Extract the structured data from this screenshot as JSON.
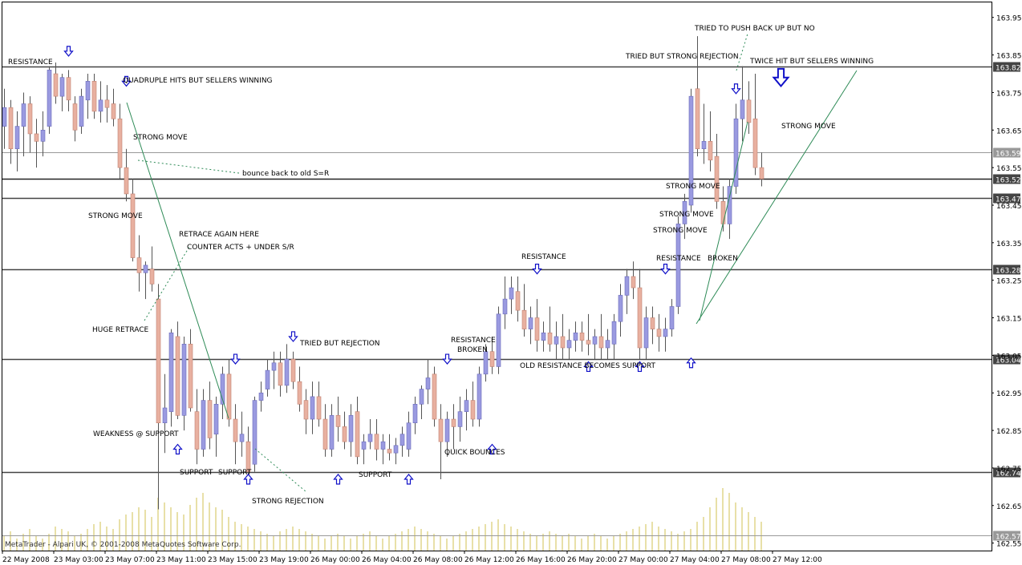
{
  "chart_data": {
    "type": "candlestick",
    "title": "",
    "xlabel": "",
    "ylabel": "",
    "ylim": [
      162.53,
      163.99
    ],
    "grid": false,
    "watermark": "MetaTrader - Alpari UK, © 2001-2008 MetaQuotes Software Corp.",
    "x_tick_labels": [
      "22 May 2008",
      "23 May 03:00",
      "23 May 07:00",
      "23 May 11:00",
      "23 May 15:00",
      "23 May 19:00",
      "26 May 00:00",
      "26 May 04:00",
      "26 May 08:00",
      "26 May 12:00",
      "26 May 16:00",
      "26 May 20:00",
      "27 May 00:00",
      "27 May 04:00",
      "27 May 08:00",
      "27 May 12:00"
    ],
    "y_tick_labels": [
      163.95,
      163.85,
      163.75,
      163.65,
      163.55,
      163.45,
      163.35,
      163.25,
      163.15,
      163.05,
      162.95,
      162.85,
      162.75,
      162.65,
      162.55
    ],
    "horizontal_levels": [
      {
        "value": 163.82,
        "label": "163.82",
        "color": "#444444"
      },
      {
        "value": 163.59,
        "label": "163.59",
        "color": "#999999"
      },
      {
        "value": 163.52,
        "label": "163.52",
        "color": "#222222"
      },
      {
        "value": 163.47,
        "label": "163.47",
        "color": "#444444"
      },
      {
        "value": 163.28,
        "label": "163.28",
        "color": "#444444"
      },
      {
        "value": 163.04,
        "label": "163.04",
        "color": "#444444"
      },
      {
        "value": 162.74,
        "label": "162.74",
        "color": "#444444"
      },
      {
        "value": 162.57,
        "label": "162.57",
        "color": "#999999"
      }
    ],
    "colors": {
      "bull": "#9a9ae0",
      "bear": "#e8b0a0",
      "bull_edge": "#6a6ab8",
      "bear_edge": "#c08070",
      "wick": "#555555",
      "volume": "#e8e0a8",
      "arrow": "#1010c8",
      "trendline": "#2e8b57"
    },
    "candles": [
      {
        "o": 163.66,
        "h": 163.76,
        "l": 163.6,
        "c": 163.71
      },
      {
        "o": 163.71,
        "h": 163.73,
        "l": 163.56,
        "c": 163.6
      },
      {
        "o": 163.6,
        "h": 163.7,
        "l": 163.54,
        "c": 163.66
      },
      {
        "o": 163.66,
        "h": 163.75,
        "l": 163.58,
        "c": 163.72
      },
      {
        "o": 163.72,
        "h": 163.74,
        "l": 163.59,
        "c": 163.64
      },
      {
        "o": 163.64,
        "h": 163.68,
        "l": 163.55,
        "c": 163.62
      },
      {
        "o": 163.62,
        "h": 163.7,
        "l": 163.58,
        "c": 163.65
      },
      {
        "o": 163.66,
        "h": 163.82,
        "l": 163.64,
        "c": 163.81
      },
      {
        "o": 163.8,
        "h": 163.83,
        "l": 163.72,
        "c": 163.74
      },
      {
        "o": 163.74,
        "h": 163.8,
        "l": 163.7,
        "c": 163.79
      },
      {
        "o": 163.79,
        "h": 163.81,
        "l": 163.7,
        "c": 163.73
      },
      {
        "o": 163.72,
        "h": 163.74,
        "l": 163.62,
        "c": 163.65
      },
      {
        "o": 163.66,
        "h": 163.76,
        "l": 163.64,
        "c": 163.74
      },
      {
        "o": 163.73,
        "h": 163.8,
        "l": 163.68,
        "c": 163.78
      },
      {
        "o": 163.78,
        "h": 163.8,
        "l": 163.68,
        "c": 163.7
      },
      {
        "o": 163.7,
        "h": 163.78,
        "l": 163.67,
        "c": 163.73
      },
      {
        "o": 163.73,
        "h": 163.77,
        "l": 163.67,
        "c": 163.71
      },
      {
        "o": 163.72,
        "h": 163.76,
        "l": 163.66,
        "c": 163.68
      },
      {
        "o": 163.68,
        "h": 163.72,
        "l": 163.52,
        "c": 163.55
      },
      {
        "o": 163.55,
        "h": 163.6,
        "l": 163.46,
        "c": 163.48
      },
      {
        "o": 163.48,
        "h": 163.52,
        "l": 163.3,
        "c": 163.31
      },
      {
        "o": 163.31,
        "h": 163.37,
        "l": 163.22,
        "c": 163.27
      },
      {
        "o": 163.27,
        "h": 163.3,
        "l": 163.2,
        "c": 163.29
      },
      {
        "o": 163.28,
        "h": 163.34,
        "l": 163.22,
        "c": 163.24
      },
      {
        "o": 163.2,
        "h": 163.24,
        "l": 162.64,
        "c": 162.87
      },
      {
        "o": 162.87,
        "h": 163.0,
        "l": 162.79,
        "c": 162.91
      },
      {
        "o": 162.9,
        "h": 163.12,
        "l": 162.86,
        "c": 163.11
      },
      {
        "o": 163.1,
        "h": 163.14,
        "l": 162.88,
        "c": 162.89
      },
      {
        "o": 162.89,
        "h": 163.1,
        "l": 162.85,
        "c": 163.08
      },
      {
        "o": 163.08,
        "h": 163.12,
        "l": 162.9,
        "c": 162.91
      },
      {
        "o": 162.9,
        "h": 162.96,
        "l": 162.76,
        "c": 162.8
      },
      {
        "o": 162.8,
        "h": 162.96,
        "l": 162.78,
        "c": 162.93
      },
      {
        "o": 162.93,
        "h": 162.98,
        "l": 162.8,
        "c": 162.83
      },
      {
        "o": 162.84,
        "h": 162.94,
        "l": 162.78,
        "c": 162.92
      },
      {
        "o": 162.92,
        "h": 163.02,
        "l": 162.88,
        "c": 163.0
      },
      {
        "o": 163.0,
        "h": 163.04,
        "l": 162.86,
        "c": 162.88
      },
      {
        "o": 162.88,
        "h": 162.92,
        "l": 162.76,
        "c": 162.82
      },
      {
        "o": 162.82,
        "h": 162.9,
        "l": 162.78,
        "c": 162.84
      },
      {
        "o": 162.82,
        "h": 162.86,
        "l": 162.72,
        "c": 162.74
      },
      {
        "o": 162.76,
        "h": 162.94,
        "l": 162.74,
        "c": 162.93
      },
      {
        "o": 162.93,
        "h": 162.98,
        "l": 162.9,
        "c": 162.95
      },
      {
        "o": 162.96,
        "h": 163.04,
        "l": 162.94,
        "c": 163.01
      },
      {
        "o": 163.01,
        "h": 163.06,
        "l": 162.96,
        "c": 163.03
      },
      {
        "o": 163.03,
        "h": 163.06,
        "l": 162.94,
        "c": 162.97
      },
      {
        "o": 162.97,
        "h": 163.08,
        "l": 162.95,
        "c": 163.04
      },
      {
        "o": 163.04,
        "h": 163.06,
        "l": 162.96,
        "c": 162.98
      },
      {
        "o": 162.98,
        "h": 163.02,
        "l": 162.9,
        "c": 162.92
      },
      {
        "o": 162.93,
        "h": 162.96,
        "l": 162.84,
        "c": 162.88
      },
      {
        "o": 162.88,
        "h": 162.98,
        "l": 162.84,
        "c": 162.94
      },
      {
        "o": 162.94,
        "h": 162.98,
        "l": 162.86,
        "c": 162.88
      },
      {
        "o": 162.88,
        "h": 162.92,
        "l": 162.78,
        "c": 162.8
      },
      {
        "o": 162.8,
        "h": 162.92,
        "l": 162.78,
        "c": 162.89
      },
      {
        "o": 162.89,
        "h": 162.94,
        "l": 162.82,
        "c": 162.86
      },
      {
        "o": 162.86,
        "h": 162.9,
        "l": 162.8,
        "c": 162.82
      },
      {
        "o": 162.82,
        "h": 162.92,
        "l": 162.78,
        "c": 162.89
      },
      {
        "o": 162.9,
        "h": 162.94,
        "l": 162.76,
        "c": 162.78
      },
      {
        "o": 162.8,
        "h": 162.84,
        "l": 162.76,
        "c": 162.82
      },
      {
        "o": 162.82,
        "h": 162.88,
        "l": 162.8,
        "c": 162.84
      },
      {
        "o": 162.84,
        "h": 162.88,
        "l": 162.77,
        "c": 162.8
      },
      {
        "o": 162.8,
        "h": 162.84,
        "l": 162.76,
        "c": 162.82
      },
      {
        "o": 162.8,
        "h": 162.84,
        "l": 162.77,
        "c": 162.79
      },
      {
        "o": 162.79,
        "h": 162.83,
        "l": 162.76,
        "c": 162.81
      },
      {
        "o": 162.81,
        "h": 162.86,
        "l": 162.78,
        "c": 162.84
      },
      {
        "o": 162.8,
        "h": 162.9,
        "l": 162.78,
        "c": 162.87
      },
      {
        "o": 162.87,
        "h": 162.94,
        "l": 162.84,
        "c": 162.92
      },
      {
        "o": 162.92,
        "h": 162.97,
        "l": 162.88,
        "c": 162.96
      },
      {
        "o": 162.96,
        "h": 163.04,
        "l": 162.92,
        "c": 162.99
      },
      {
        "o": 163.0,
        "h": 163.02,
        "l": 162.86,
        "c": 162.88
      },
      {
        "o": 162.88,
        "h": 162.92,
        "l": 162.72,
        "c": 162.82
      },
      {
        "o": 162.82,
        "h": 162.9,
        "l": 162.78,
        "c": 162.88
      },
      {
        "o": 162.88,
        "h": 162.92,
        "l": 162.8,
        "c": 162.86
      },
      {
        "o": 162.86,
        "h": 162.94,
        "l": 162.82,
        "c": 162.9
      },
      {
        "o": 162.9,
        "h": 162.96,
        "l": 162.85,
        "c": 162.93
      },
      {
        "o": 162.93,
        "h": 162.98,
        "l": 162.86,
        "c": 162.88
      },
      {
        "o": 162.88,
        "h": 163.02,
        "l": 162.86,
        "c": 163.0
      },
      {
        "o": 163.0,
        "h": 163.08,
        "l": 162.98,
        "c": 163.06
      },
      {
        "o": 163.06,
        "h": 163.1,
        "l": 163.0,
        "c": 163.02
      },
      {
        "o": 163.02,
        "h": 163.18,
        "l": 163.0,
        "c": 163.16
      },
      {
        "o": 163.16,
        "h": 163.26,
        "l": 163.12,
        "c": 163.2
      },
      {
        "o": 163.2,
        "h": 163.26,
        "l": 163.16,
        "c": 163.23
      },
      {
        "o": 163.22,
        "h": 163.26,
        "l": 163.14,
        "c": 163.17
      },
      {
        "o": 163.17,
        "h": 163.24,
        "l": 163.1,
        "c": 163.12
      },
      {
        "o": 163.12,
        "h": 163.18,
        "l": 163.08,
        "c": 163.15
      },
      {
        "o": 163.15,
        "h": 163.2,
        "l": 163.06,
        "c": 163.09
      },
      {
        "o": 163.09,
        "h": 163.14,
        "l": 163.06,
        "c": 163.11
      },
      {
        "o": 163.11,
        "h": 163.18,
        "l": 163.06,
        "c": 163.08
      },
      {
        "o": 163.08,
        "h": 163.14,
        "l": 163.04,
        "c": 163.1
      },
      {
        "o": 163.1,
        "h": 163.16,
        "l": 163.04,
        "c": 163.07
      },
      {
        "o": 163.07,
        "h": 163.12,
        "l": 163.04,
        "c": 163.09
      },
      {
        "o": 163.09,
        "h": 163.14,
        "l": 163.06,
        "c": 163.11
      },
      {
        "o": 163.11,
        "h": 163.14,
        "l": 163.06,
        "c": 163.09
      },
      {
        "o": 163.09,
        "h": 163.16,
        "l": 163.05,
        "c": 163.08
      },
      {
        "o": 163.08,
        "h": 163.12,
        "l": 163.04,
        "c": 163.1
      },
      {
        "o": 163.1,
        "h": 163.16,
        "l": 163.04,
        "c": 163.07
      },
      {
        "o": 163.07,
        "h": 163.12,
        "l": 163.04,
        "c": 163.09
      },
      {
        "o": 163.08,
        "h": 163.16,
        "l": 163.04,
        "c": 163.14
      },
      {
        "o": 163.14,
        "h": 163.24,
        "l": 163.1,
        "c": 163.21
      },
      {
        "o": 163.21,
        "h": 163.28,
        "l": 163.16,
        "c": 163.26
      },
      {
        "o": 163.26,
        "h": 163.3,
        "l": 163.2,
        "c": 163.23
      },
      {
        "o": 163.23,
        "h": 163.28,
        "l": 163.04,
        "c": 163.07
      },
      {
        "o": 163.07,
        "h": 163.18,
        "l": 163.04,
        "c": 163.15
      },
      {
        "o": 163.15,
        "h": 163.18,
        "l": 163.08,
        "c": 163.12
      },
      {
        "o": 163.12,
        "h": 163.16,
        "l": 163.06,
        "c": 163.1
      },
      {
        "o": 163.1,
        "h": 163.15,
        "l": 163.06,
        "c": 163.12
      },
      {
        "o": 163.12,
        "h": 163.2,
        "l": 163.1,
        "c": 163.18
      },
      {
        "o": 163.18,
        "h": 163.42,
        "l": 163.16,
        "c": 163.4
      },
      {
        "o": 163.4,
        "h": 163.48,
        "l": 163.36,
        "c": 163.46
      },
      {
        "o": 163.45,
        "h": 163.76,
        "l": 163.43,
        "c": 163.74
      },
      {
        "o": 163.76,
        "h": 163.9,
        "l": 163.58,
        "c": 163.6
      },
      {
        "o": 163.6,
        "h": 163.72,
        "l": 163.56,
        "c": 163.62
      },
      {
        "o": 163.62,
        "h": 163.7,
        "l": 163.54,
        "c": 163.57
      },
      {
        "o": 163.58,
        "h": 163.64,
        "l": 163.44,
        "c": 163.46
      },
      {
        "o": 163.46,
        "h": 163.5,
        "l": 163.38,
        "c": 163.4
      },
      {
        "o": 163.4,
        "h": 163.52,
        "l": 163.36,
        "c": 163.5
      },
      {
        "o": 163.5,
        "h": 163.72,
        "l": 163.48,
        "c": 163.68
      },
      {
        "o": 163.68,
        "h": 163.82,
        "l": 163.62,
        "c": 163.73
      },
      {
        "o": 163.73,
        "h": 163.78,
        "l": 163.64,
        "c": 163.67
      },
      {
        "o": 163.68,
        "h": 163.8,
        "l": 163.53,
        "c": 163.55
      },
      {
        "o": 163.55,
        "h": 163.59,
        "l": 163.5,
        "c": 163.52
      }
    ],
    "volume": [
      6,
      8,
      5,
      7,
      9,
      6,
      5,
      7,
      10,
      9,
      8,
      6,
      7,
      9,
      11,
      12,
      10,
      9,
      13,
      15,
      16,
      18,
      17,
      14,
      22,
      20,
      18,
      16,
      15,
      19,
      22,
      24,
      20,
      18,
      17,
      14,
      12,
      11,
      10,
      9,
      8,
      7,
      6,
      8,
      9,
      10,
      9,
      8,
      7,
      6,
      5,
      6,
      7,
      6,
      5,
      6,
      7,
      8,
      6,
      5,
      6,
      7,
      8,
      9,
      10,
      9,
      8,
      7,
      6,
      5,
      6,
      7,
      8,
      9,
      10,
      11,
      12,
      13,
      11,
      10,
      9,
      8,
      7,
      6,
      7,
      8,
      7,
      6,
      7,
      6,
      5,
      6,
      7,
      6,
      5,
      6,
      7,
      8,
      9,
      10,
      11,
      12,
      10,
      9,
      8,
      7,
      8,
      9,
      12,
      14,
      18,
      22,
      26,
      24,
      20,
      18,
      16,
      14,
      12,
      11,
      10,
      9
    ],
    "annotations": [
      {
        "text": "RESISTANCE"
      },
      {
        "text": "QUADRUPLE HITS BUT SELLERS WINNING"
      },
      {
        "text": "STRONG MOVE"
      },
      {
        "text": "bounce back to old S=R"
      },
      {
        "text": "STRONG MOVE"
      },
      {
        "text": "RETRACE AGAIN HERE"
      },
      {
        "text": "COUNTER ACTS + UNDER S/R"
      },
      {
        "text": "HUGE RETRACE"
      },
      {
        "text": "WEAKNESS @ SUPPORT"
      },
      {
        "text": "SUPPORT"
      },
      {
        "text": "SUPPORT"
      },
      {
        "text": "STRONG REJECTION"
      },
      {
        "text": "TRIED BUT REJECTION"
      },
      {
        "text": "SUPPORT"
      },
      {
        "text": "RESISTANCE"
      },
      {
        "text": "BROKEN"
      },
      {
        "text": "QUICK BOUNCES"
      },
      {
        "text": "RESISTANCE"
      },
      {
        "text": "OLD RESISTANCE BECOMES SUPPORT"
      },
      {
        "text": "RESISTANCE"
      },
      {
        "text": "BROKEN"
      },
      {
        "text": "STRONG MOVE"
      },
      {
        "text": "STRONG MOVE"
      },
      {
        "text": "STRONG MOVE"
      },
      {
        "text": "TRIED TO PUSH BACK UP BUT NO"
      },
      {
        "text": "TRIED BUT STRONG REJECTION"
      },
      {
        "text": "TWICE HIT BUT SELLERS WINNING"
      },
      {
        "text": "STRONG MOVE"
      }
    ],
    "signals": [
      {
        "dir": "down",
        "candle": 10,
        "price": 163.86
      },
      {
        "dir": "down",
        "candle": 19,
        "price": 163.78
      },
      {
        "dir": "up",
        "candle": 27,
        "price": 162.8
      },
      {
        "dir": "down",
        "candle": 36,
        "price": 163.04
      },
      {
        "dir": "up",
        "candle": 38,
        "price": 162.72
      },
      {
        "dir": "down",
        "candle": 45,
        "price": 163.1
      },
      {
        "dir": "up",
        "candle": 52,
        "price": 162.72
      },
      {
        "dir": "up",
        "candle": 63,
        "price": 162.72
      },
      {
        "dir": "down",
        "candle": 69,
        "price": 163.04
      },
      {
        "dir": "up",
        "candle": 76,
        "price": 162.8
      },
      {
        "dir": "down",
        "candle": 83,
        "price": 163.28
      },
      {
        "dir": "up",
        "candle": 91,
        "price": 163.02
      },
      {
        "dir": "up",
        "candle": 99,
        "price": 163.02
      },
      {
        "dir": "down",
        "candle": 103,
        "price": 163.28
      },
      {
        "dir": "up",
        "candle": 107,
        "price": 163.03
      },
      {
        "dir": "down",
        "candle": 114,
        "price": 163.76
      },
      {
        "dir": "down",
        "candle": 121,
        "price": 163.79,
        "big": true
      }
    ]
  }
}
